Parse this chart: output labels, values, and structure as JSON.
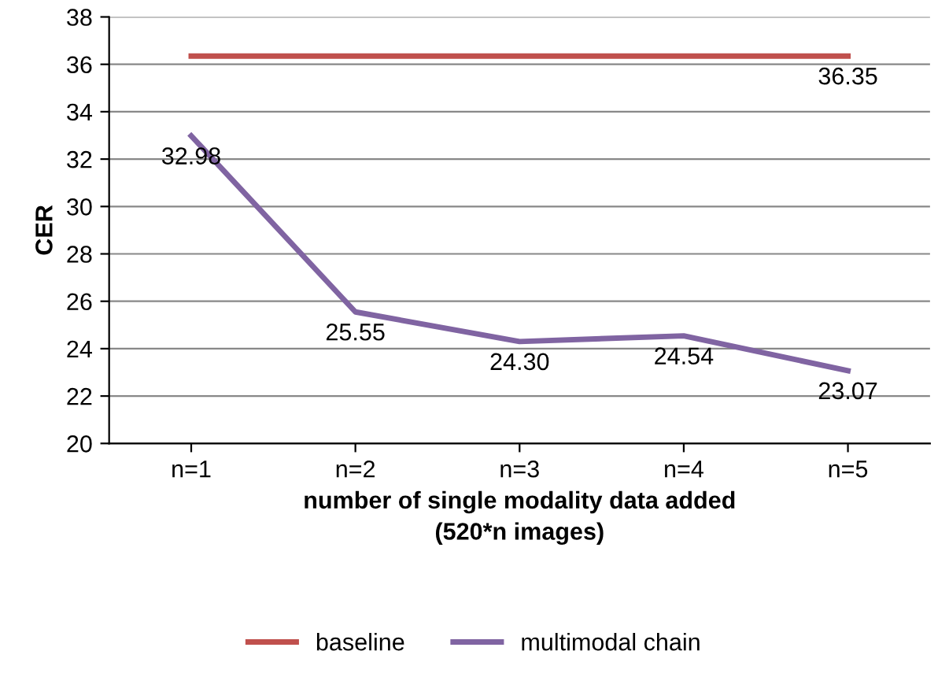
{
  "chart_data": {
    "type": "line",
    "ylabel": "CER",
    "xlabel": "number of single modality data added\n(520*n images)",
    "categories": [
      "n=1",
      "n=2",
      "n=3",
      "n=4",
      "n=5"
    ],
    "series": [
      {
        "name": "baseline",
        "color": "#c0504d",
        "values": [
          36.35,
          36.35,
          36.35,
          36.35,
          36.35
        ],
        "value_labels": [
          null,
          null,
          null,
          null,
          "36.35"
        ]
      },
      {
        "name": "multimodal chain",
        "color": "#8064a2",
        "values": [
          32.98,
          25.55,
          24.3,
          24.54,
          23.07
        ],
        "value_labels": [
          "32.98",
          "25.55",
          "24.30",
          "24.54",
          "23.07"
        ]
      }
    ],
    "ylim": [
      20,
      38
    ],
    "yticks": [
      20,
      22,
      24,
      26,
      28,
      30,
      32,
      34,
      36,
      38
    ],
    "grid": "y",
    "legend": "bottom",
    "marker": "none",
    "line_style": "solid"
  }
}
